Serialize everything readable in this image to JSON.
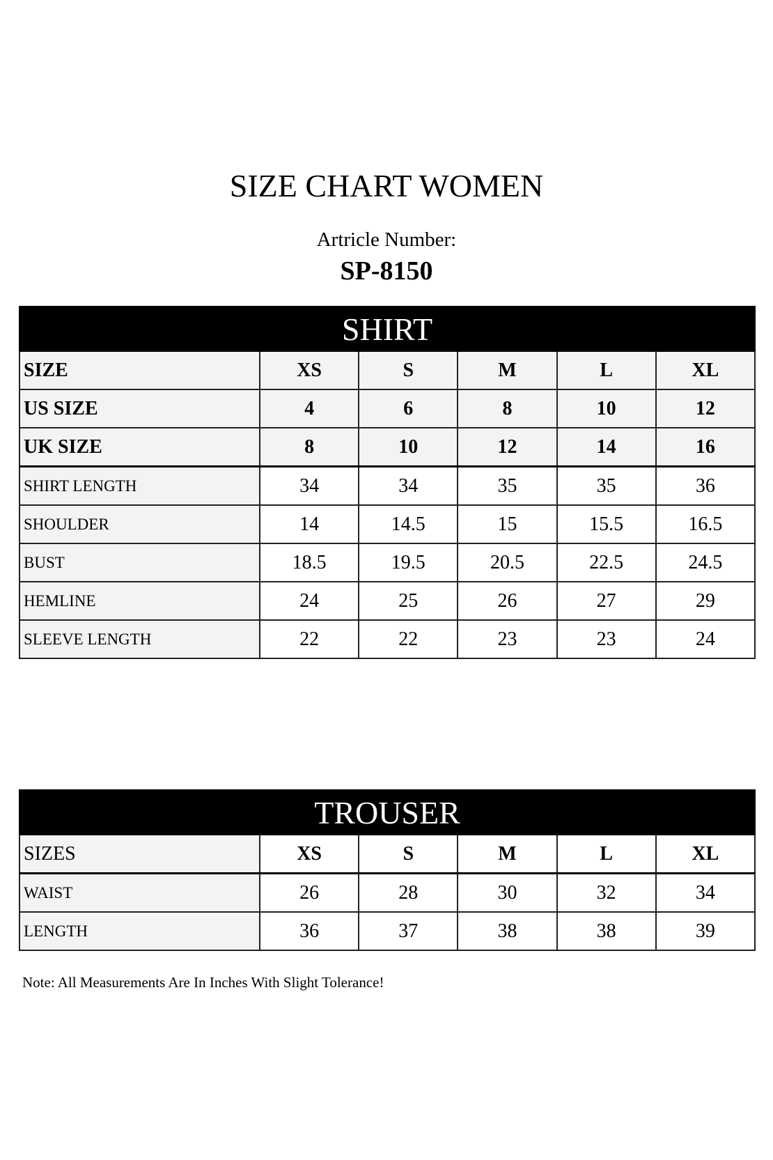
{
  "title": "SIZE CHART WOMEN",
  "article_label": "Artricle Number:",
  "article_number": "SP-8150",
  "shirt": {
    "heading": "SHIRT",
    "header": {
      "label": "SIZE",
      "values": [
        "XS",
        "S",
        "M",
        "L",
        "XL"
      ]
    },
    "size_rows": [
      {
        "label": "US SIZE",
        "values": [
          "4",
          "6",
          "8",
          "10",
          "12"
        ]
      },
      {
        "label": "UK SIZE",
        "values": [
          "8",
          "10",
          "12",
          "14",
          "16"
        ]
      }
    ],
    "rows": [
      {
        "label": "SHIRT LENGTH",
        "values": [
          "34",
          "34",
          "35",
          "35",
          "36"
        ]
      },
      {
        "label": "SHOULDER",
        "values": [
          "14",
          "14.5",
          "15",
          "15.5",
          "16.5"
        ]
      },
      {
        "label": "BUST",
        "values": [
          "18.5",
          "19.5",
          "20.5",
          "22.5",
          "24.5"
        ]
      },
      {
        "label": "HEMLINE",
        "values": [
          "24",
          "25",
          "26",
          "27",
          "29"
        ]
      },
      {
        "label": "SLEEVE LENGTH",
        "values": [
          "22",
          "22",
          "23",
          "23",
          "24"
        ]
      }
    ]
  },
  "trouser": {
    "heading": "TROUSER",
    "header": {
      "label": "SIZES",
      "values": [
        "XS",
        "S",
        "M",
        "L",
        "XL"
      ]
    },
    "rows": [
      {
        "label": "WAIST",
        "values": [
          "26",
          "28",
          "30",
          "32",
          "34"
        ]
      },
      {
        "label": "LENGTH",
        "values": [
          "36",
          "37",
          "38",
          "38",
          "39"
        ]
      }
    ]
  },
  "note": "Note: All Measurements Are In Inches With Slight Tolerance!"
}
